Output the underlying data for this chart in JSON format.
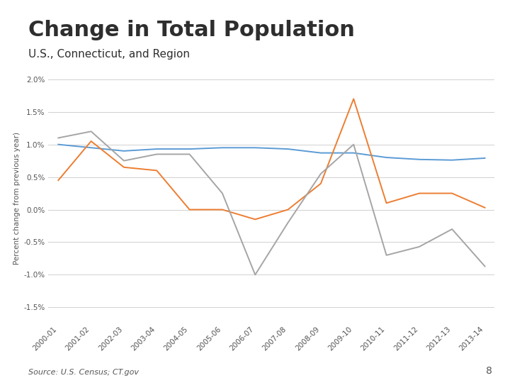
{
  "title": "Change in Total Population",
  "subtitle": "U.S., Connecticut, and Region",
  "source": "Source: U.S. Census; CT.gov",
  "ylabel": "Percent change from previous year)",
  "categories": [
    "2000-01",
    "2001-02",
    "2002-03",
    "2003-04",
    "2004-05",
    "2005-06",
    "2006-07",
    "2007-08",
    "2008-09",
    "2009-10",
    "2010-11",
    "2011-12",
    "2012-13",
    "2013-14"
  ],
  "united_states": [
    0.01,
    0.0095,
    0.009,
    0.0093,
    0.0093,
    0.0095,
    0.0095,
    0.0093,
    0.0087,
    0.0087,
    0.008,
    0.0077,
    0.0076,
    0.0079
  ],
  "connecticut": [
    0.0045,
    0.0105,
    0.0065,
    0.006,
    0.0,
    0.0,
    -0.0015,
    0.0,
    0.004,
    0.017,
    0.001,
    0.0025,
    0.0025,
    0.0003
  ],
  "northwest_hills": [
    0.011,
    0.012,
    0.0075,
    0.0085,
    0.0085,
    0.0025,
    -0.01,
    -0.002,
    0.0055,
    0.01,
    -0.007,
    -0.0057,
    -0.003,
    -0.0087
  ],
  "us_color": "#5B9BD5",
  "ct_color": "#ED7D31",
  "nh_color": "#A5A5A5",
  "bg_color": "#FFFFFF",
  "ylim_min": -0.0175,
  "ylim_max": 0.021,
  "yticks": [
    -0.015,
    -0.01,
    -0.005,
    0.0,
    0.005,
    0.01,
    0.015,
    0.02
  ],
  "page_number": "8",
  "title_fontsize": 22,
  "subtitle_fontsize": 11,
  "source_fontsize": 8,
  "tick_fontsize": 7.5,
  "ylabel_fontsize": 7.5
}
